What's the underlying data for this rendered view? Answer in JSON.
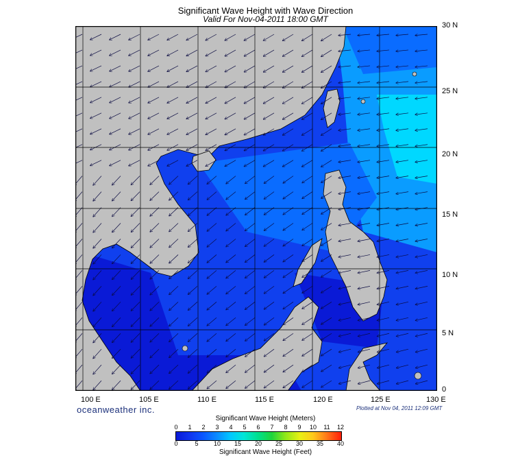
{
  "header": {
    "title": "Significant Wave Height with Wave Direction",
    "subtitle": "Valid For Nov-04-2011 18:00 GMT"
  },
  "map": {
    "lat_labels": [
      "30 N",
      "25 N",
      "20 N",
      "15 N",
      "10 N",
      "5 N",
      "0"
    ],
    "lon_labels": [
      "100 E",
      "105 E",
      "110 E",
      "115 E",
      "120 E",
      "125 E",
      "130 E"
    ],
    "extent": {
      "lon_min": 98.5,
      "lon_max": 130,
      "lat_min": 0,
      "lat_max": 30
    },
    "land_color": "#c0c0c0",
    "ocean_colors": [
      "#0a1ad6",
      "#1040ee",
      "#0a6cff",
      "#0a9cff",
      "#00d0ff",
      "#00eeff"
    ],
    "wave_direction": "arrows toward southwest and west"
  },
  "footer": {
    "brand": "oceanweather inc.",
    "plotted": "Plotted at Nov 04, 2011 12:09 GMT"
  },
  "legend": {
    "title_meters": "Significant Wave Height (Meters)",
    "title_feet": "Significant Wave Height (Feet)",
    "meters_ticks": [
      "0",
      "1",
      "2",
      "3",
      "4",
      "5",
      "6",
      "7",
      "8",
      "9",
      "10",
      "11",
      "12"
    ],
    "feet_ticks": [
      "0",
      "5",
      "10",
      "15",
      "20",
      "25",
      "30",
      "35",
      "40"
    ]
  }
}
